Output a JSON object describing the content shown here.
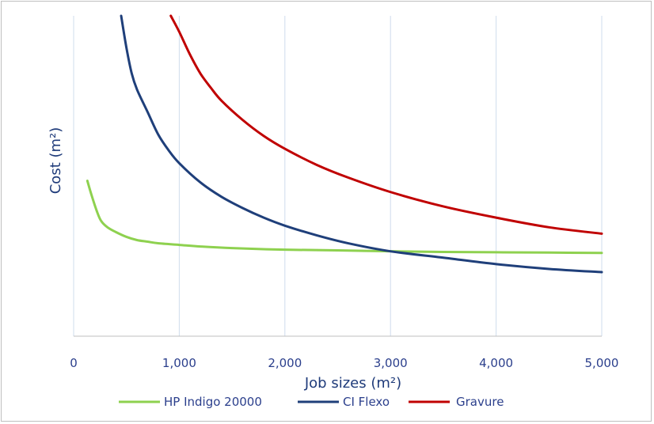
{
  "chart_data": {
    "type": "line",
    "title": "",
    "xlabel": "Job sizes (m²)",
    "ylabel": "Cost (m²)",
    "xlim": [
      0,
      5000
    ],
    "ylim": [
      0,
      100
    ],
    "x_ticks": [
      0,
      1000,
      2000,
      3000,
      4000,
      5000
    ],
    "x_tick_labels": [
      "0",
      "1,000",
      "2,000",
      "3,000",
      "4,000",
      "5,000"
    ],
    "y_tick_labels_visible": false,
    "grid": "vertical",
    "legend": "bottom",
    "series": [
      {
        "name": "HP Indigo 20000",
        "color": "#8ed14f",
        "points": [
          [
            130,
            48.5
          ],
          [
            170,
            44
          ],
          [
            220,
            39
          ],
          [
            260,
            36
          ],
          [
            320,
            34
          ],
          [
            400,
            32.5
          ],
          [
            500,
            31
          ],
          [
            600,
            30
          ],
          [
            700,
            29.5
          ],
          [
            800,
            29
          ],
          [
            1000,
            28.5
          ],
          [
            1200,
            28
          ],
          [
            1500,
            27.5
          ],
          [
            2000,
            27
          ],
          [
            2500,
            26.8
          ],
          [
            3000,
            26.5
          ],
          [
            3500,
            26.3
          ],
          [
            4000,
            26.2
          ],
          [
            4500,
            26.1
          ],
          [
            5000,
            26
          ]
        ]
      },
      {
        "name": "CI Flexo",
        "color": "#1f3f7a",
        "points": [
          [
            450,
            100
          ],
          [
            500,
            90
          ],
          [
            550,
            82
          ],
          [
            600,
            77
          ],
          [
            700,
            70
          ],
          [
            800,
            63
          ],
          [
            900,
            58
          ],
          [
            1000,
            54
          ],
          [
            1200,
            48
          ],
          [
            1400,
            43.5
          ],
          [
            1600,
            40
          ],
          [
            1800,
            37
          ],
          [
            2000,
            34.5
          ],
          [
            2300,
            31.5
          ],
          [
            2600,
            29
          ],
          [
            3000,
            26.5
          ],
          [
            3500,
            24.5
          ],
          [
            4000,
            22.5
          ],
          [
            4500,
            21
          ],
          [
            5000,
            20
          ]
        ]
      },
      {
        "name": "Gravure",
        "color": "#c00000",
        "points": [
          [
            920,
            100
          ],
          [
            1000,
            95
          ],
          [
            1100,
            88
          ],
          [
            1200,
            82
          ],
          [
            1300,
            77.5
          ],
          [
            1400,
            73.5
          ],
          [
            1600,
            67.5
          ],
          [
            1800,
            62.5
          ],
          [
            2000,
            58.5
          ],
          [
            2300,
            53.5
          ],
          [
            2600,
            49.5
          ],
          [
            3000,
            45
          ],
          [
            3500,
            40.5
          ],
          [
            4000,
            37
          ],
          [
            4500,
            34
          ],
          [
            5000,
            32
          ]
        ]
      }
    ]
  }
}
